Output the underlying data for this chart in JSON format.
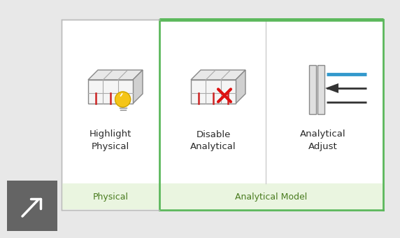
{
  "background_color": "#e8e8e8",
  "panel_bg": "#ffffff",
  "green_border": "#5cb85c",
  "green_label_bg": "#eaf5e0",
  "gray_arrow_bg": "#646464",
  "fig_width": 5.72,
  "fig_height": 3.4,
  "labels": {
    "highlight_line1": "Highlight",
    "highlight_line2": "Physical",
    "disable_line1": "Disable",
    "disable_line2": "Analytical",
    "adjust_line1": "Analytical",
    "adjust_line2": "Adjust",
    "section_physical": "Physical",
    "section_analytical": "Analytical Model"
  },
  "section_label_color": "#4a7c20",
  "text_color": "#2a2a2a",
  "blue_line": "#3399cc",
  "red_cross": "#dd1111",
  "yellow_bulb": "#f5c518"
}
